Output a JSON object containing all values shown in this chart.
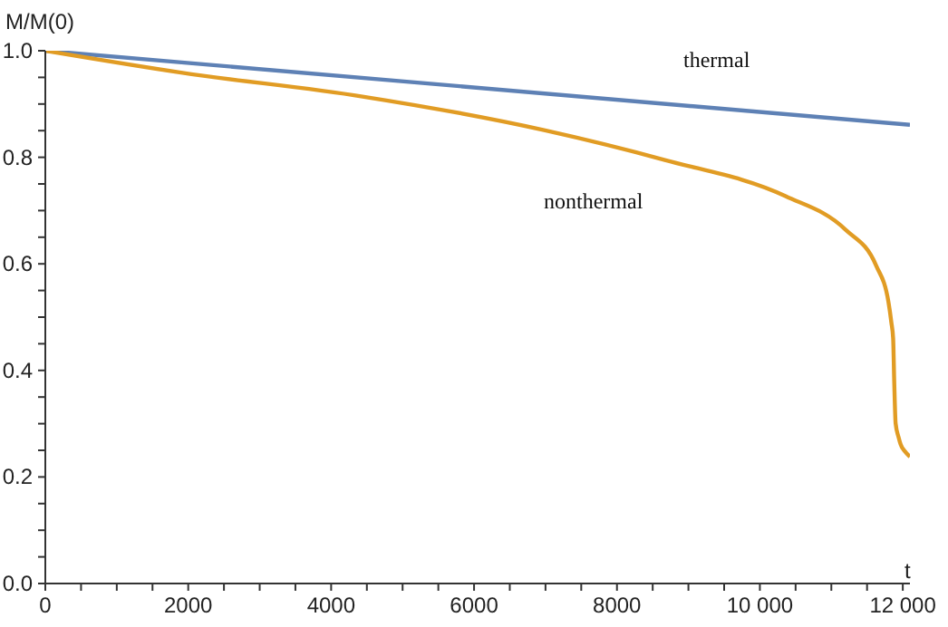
{
  "chart_data": {
    "type": "line",
    "xlabel": "t",
    "ylabel": "M/M(0)",
    "xlim": [
      0,
      12100
    ],
    "ylim": [
      0,
      1.0
    ],
    "xticks": [
      0,
      {
        "value": 500,
        "label": null
      },
      {
        "value": 1000,
        "label": null
      },
      {
        "value": 1500,
        "label": null
      },
      2000,
      {
        "value": 2500,
        "label": null
      },
      {
        "value": 3000,
        "label": null
      },
      {
        "value": 3500,
        "label": null
      },
      4000,
      {
        "value": 4500,
        "label": null
      },
      {
        "value": 5000,
        "label": null
      },
      {
        "value": 5500,
        "label": null
      },
      6000,
      {
        "value": 6500,
        "label": null
      },
      {
        "value": 7000,
        "label": null
      },
      {
        "value": 7500,
        "label": null
      },
      8000,
      {
        "value": 8500,
        "label": null
      },
      {
        "value": 9000,
        "label": null
      },
      {
        "value": 9500,
        "label": null
      },
      {
        "value": 10000,
        "label": "10 000"
      },
      {
        "value": 10500,
        "label": null
      },
      {
        "value": 11000,
        "label": null
      },
      {
        "value": 11500,
        "label": null
      },
      {
        "value": 12000,
        "label": "12 000"
      }
    ],
    "yticks": [
      {
        "value": 0,
        "label": "0.0"
      },
      {
        "value": 0.05,
        "label": null
      },
      {
        "value": 0.1,
        "label": null
      },
      {
        "value": 0.15,
        "label": null
      },
      0.2,
      {
        "value": 0.25,
        "label": null
      },
      {
        "value": 0.3,
        "label": null
      },
      {
        "value": 0.35,
        "label": null
      },
      0.4,
      {
        "value": 0.45,
        "label": null
      },
      {
        "value": 0.5,
        "label": null
      },
      {
        "value": 0.55,
        "label": null
      },
      0.6,
      {
        "value": 0.65,
        "label": null
      },
      {
        "value": 0.7,
        "label": null
      },
      {
        "value": 0.75,
        "label": null
      },
      0.8,
      {
        "value": 0.85,
        "label": null
      },
      {
        "value": 0.9,
        "label": null
      },
      {
        "value": 0.95,
        "label": null
      },
      {
        "value": 1.0,
        "label": "1.0"
      }
    ],
    "grid": false,
    "legend": false,
    "marker": "none",
    "line_style": "solid",
    "series": [
      {
        "name": "thermal",
        "color": "#5e81b5",
        "x": [
          0,
          12100
        ],
        "values": [
          1.0,
          0.861
        ]
      },
      {
        "name": "nonthermal",
        "color": "#e19c24",
        "x": [
          0,
          1900,
          4440,
          6980,
          8670,
          10360,
          11200,
          11630,
          11800,
          11840,
          11865,
          11880,
          11900,
          11940,
          11970,
          12030,
          12100
        ],
        "values": [
          1.0,
          0.959,
          0.914,
          0.851,
          0.795,
          0.727,
          0.664,
          0.596,
          0.528,
          0.49,
          0.46,
          0.38,
          0.3,
          0.275,
          0.261,
          0.248,
          0.238
        ]
      }
    ]
  }
}
